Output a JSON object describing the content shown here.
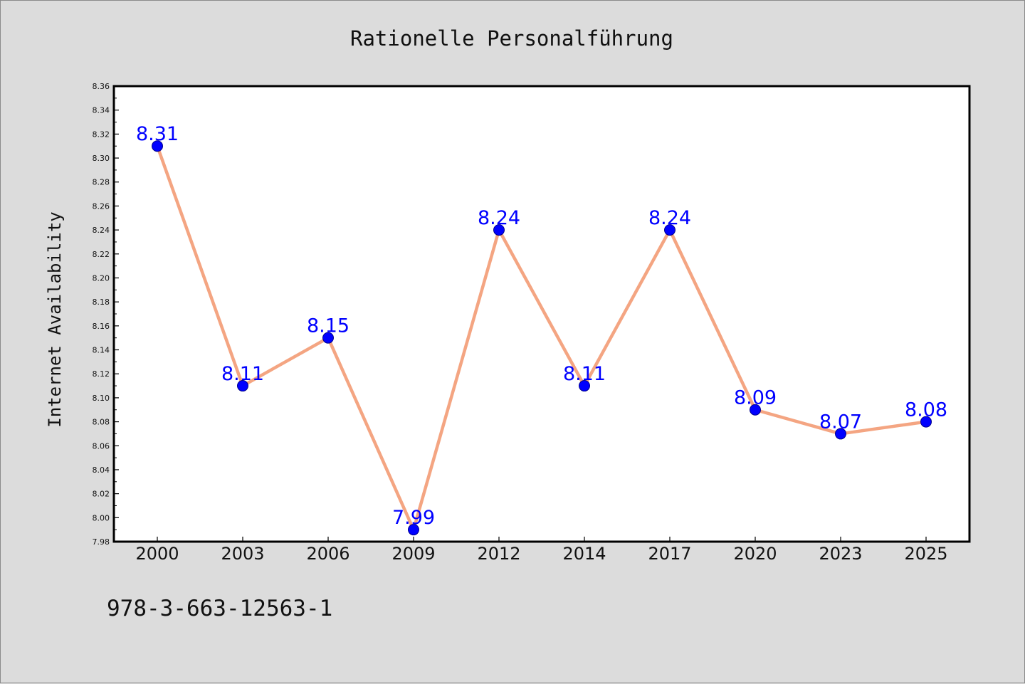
{
  "chart_data": {
    "type": "line",
    "title": "Rationelle Personalführung",
    "xlabel": "",
    "ylabel": "Internet Availability",
    "categories": [
      "2000",
      "2003",
      "2006",
      "2009",
      "2012",
      "2014",
      "2017",
      "2020",
      "2023",
      "2025"
    ],
    "series": [
      {
        "values": [
          8.31,
          8.11,
          8.15,
          7.99,
          8.24,
          8.11,
          8.24,
          8.09,
          8.07,
          8.08
        ],
        "data_labels": [
          "8.31",
          "8.11",
          "8.15",
          "7.99",
          "8.24",
          "8.11",
          "8.24",
          "8.09",
          "8.07",
          "8.08"
        ]
      }
    ],
    "ylim": [
      7.98,
      8.36
    ],
    "ytick_step": 0.02,
    "ytick_decimals": 2,
    "grid": false,
    "legend": "none",
    "colors": {
      "line": "#f4a582",
      "marker": "#0000ff",
      "data_label": "#0000ff",
      "background": "#dcdcdc",
      "plot_area": "#ffffff"
    }
  },
  "footnote": "978-3-663-12563-1"
}
